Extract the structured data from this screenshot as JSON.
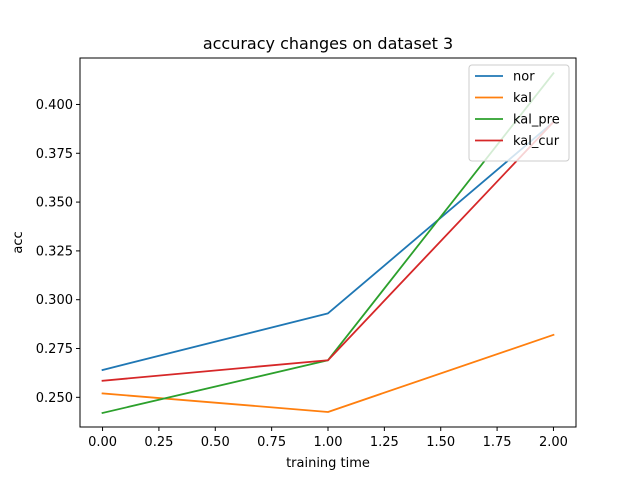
{
  "chart_data": {
    "type": "line",
    "title": "accuracy changes on dataset 3",
    "xlabel": "training time",
    "ylabel": "acc",
    "xlim": [
      -0.1,
      2.1
    ],
    "ylim": [
      0.2348,
      0.4238
    ],
    "xticks": [
      0.0,
      0.25,
      0.5,
      0.75,
      1.0,
      1.25,
      1.5,
      1.75,
      2.0
    ],
    "xtick_labels": [
      "0.00",
      "0.25",
      "0.50",
      "0.75",
      "1.00",
      "1.25",
      "1.50",
      "1.75",
      "2.00"
    ],
    "yticks": [
      0.25,
      0.275,
      0.3,
      0.325,
      0.35,
      0.375,
      0.4
    ],
    "ytick_labels": [
      "0.250",
      "0.275",
      "0.300",
      "0.325",
      "0.350",
      "0.375",
      "0.400"
    ],
    "grid": false,
    "legend_position": "top-right",
    "x": [
      0,
      1,
      2
    ],
    "series": [
      {
        "name": "nor",
        "color": "#1f77b4",
        "values": [
          0.264,
          0.293,
          0.391
        ]
      },
      {
        "name": "kal",
        "color": "#ff7f0e",
        "values": [
          0.252,
          0.2425,
          0.282
        ]
      },
      {
        "name": "kal_pre",
        "color": "#2ca02c",
        "values": [
          0.242,
          0.269,
          0.416
        ]
      },
      {
        "name": "kal_cur",
        "color": "#d62728",
        "values": [
          0.2585,
          0.269,
          0.391
        ]
      }
    ]
  }
}
